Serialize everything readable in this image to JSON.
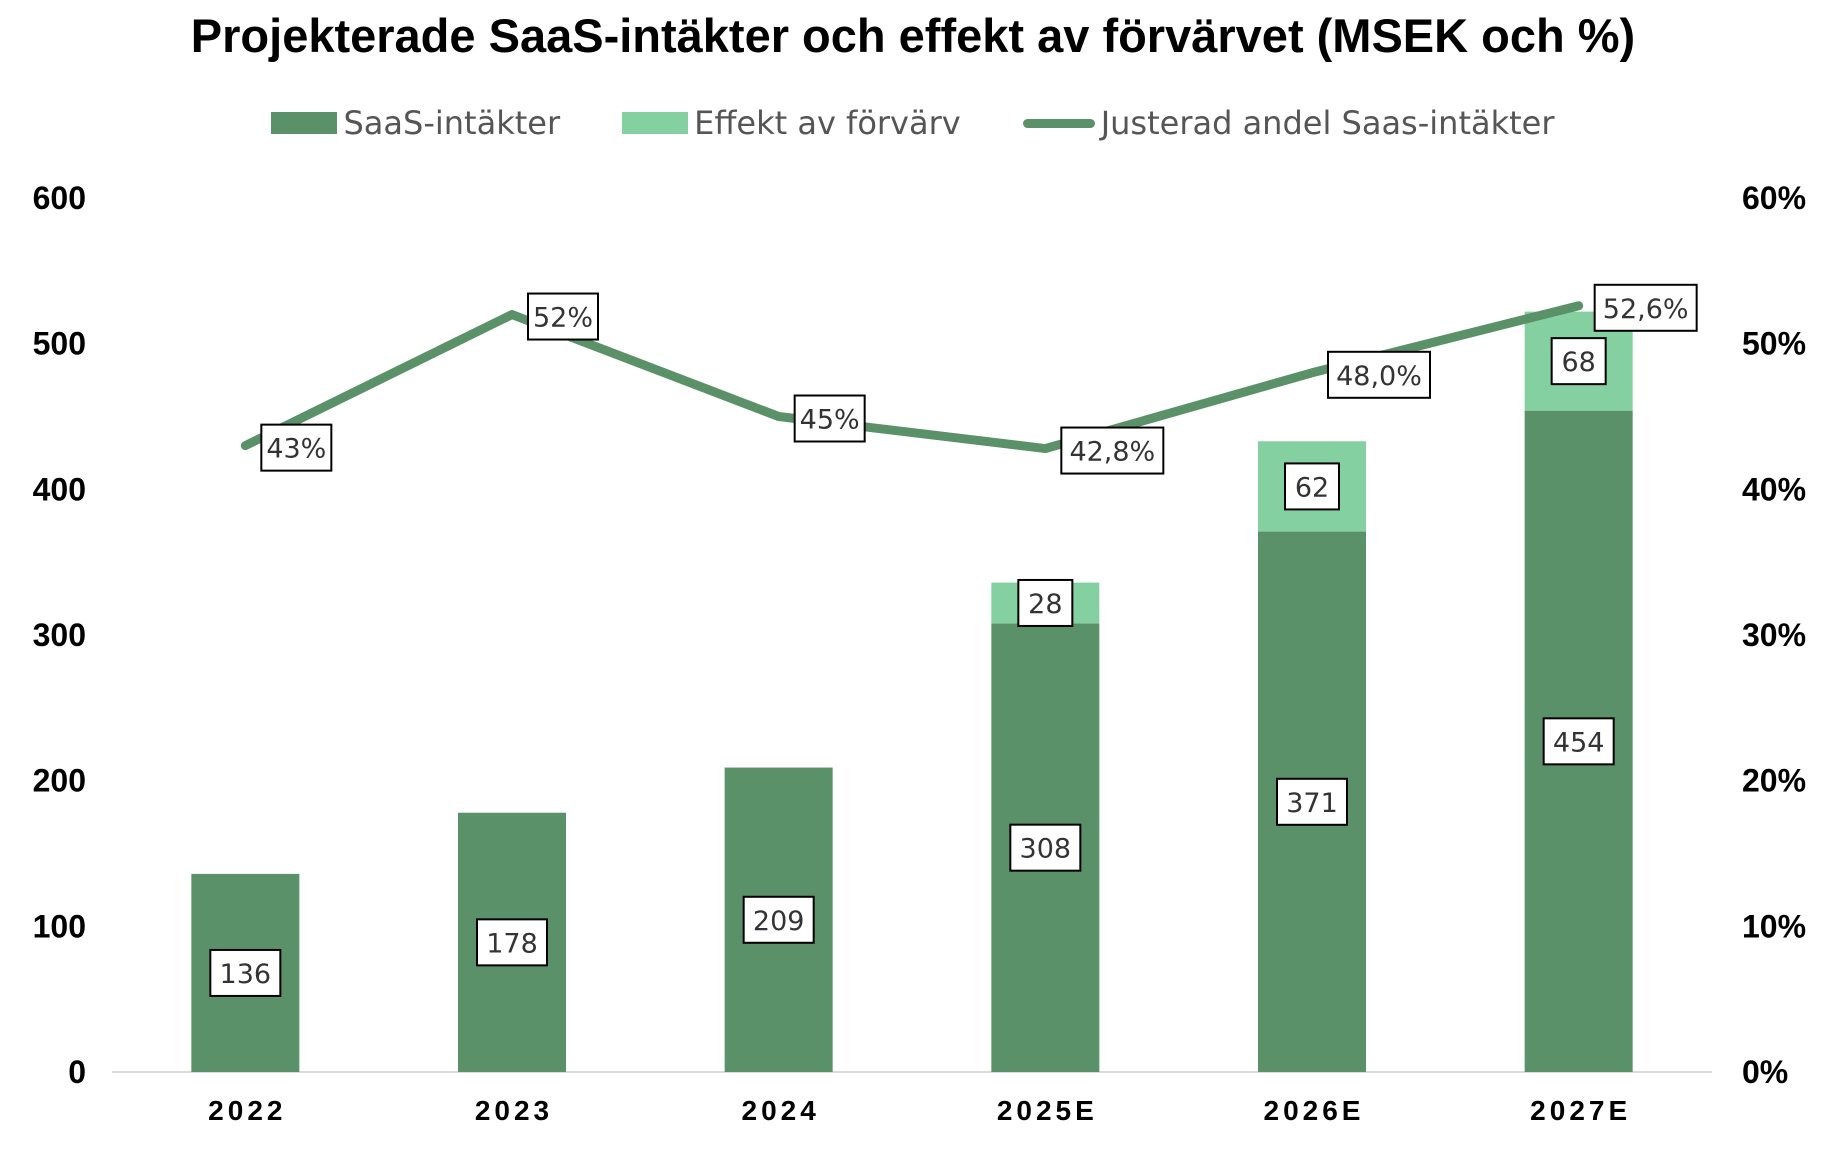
{
  "chart_data": {
    "type": "bar",
    "title": "Projekterade SaaS-intäkter och effekt av förvärvet (MSEK och %)",
    "categories": [
      "2022",
      "2023",
      "2024",
      "2025E",
      "2026E",
      "2027E"
    ],
    "series": [
      {
        "name": "SaaS-intäkter",
        "kind": "bar",
        "axis": "left",
        "color": "#5b9169",
        "values": [
          136,
          178,
          209,
          308,
          371,
          454
        ],
        "labels": [
          "136",
          "178",
          "209",
          "308",
          "371",
          "454"
        ]
      },
      {
        "name": "Effekt av förvärv",
        "kind": "bar-stacked",
        "axis": "left",
        "color": "#84d0a1",
        "values": [
          null,
          null,
          null,
          28,
          62,
          68
        ],
        "labels": [
          "",
          "",
          "",
          "28",
          "62",
          "68"
        ]
      },
      {
        "name": "Justerad andel Saas-intäkter",
        "kind": "line",
        "axis": "right",
        "color": "#5b9169",
        "values": [
          43,
          52,
          45,
          42.8,
          48,
          52.6
        ],
        "labels": [
          "43%",
          "52%",
          "45%",
          "42,8%",
          "48,0%",
          "52,6%"
        ]
      }
    ],
    "y_left": {
      "min": 0,
      "max": 600,
      "ticks": [
        "0",
        "100",
        "200",
        "300",
        "400",
        "500",
        "600"
      ]
    },
    "y_right": {
      "min": 0,
      "max": 60,
      "ticks": [
        "0%",
        "10%",
        "20%",
        "30%",
        "40%",
        "50%",
        "60%"
      ]
    },
    "legend_position": "top",
    "grid": false
  }
}
